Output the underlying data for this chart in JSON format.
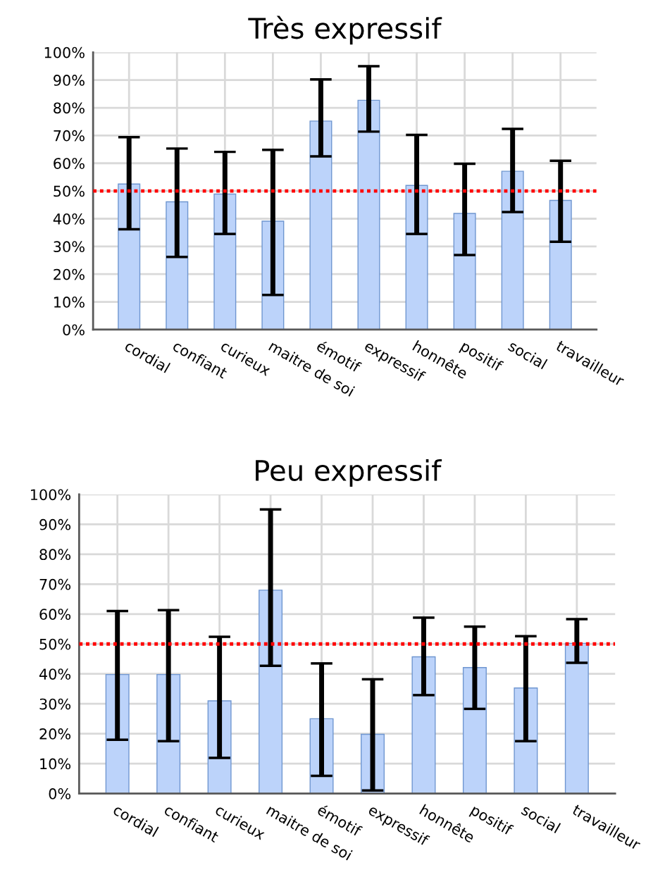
{
  "chart_data": [
    {
      "type": "bar",
      "title": "Très expressif",
      "categories": [
        "cordial",
        "confiant",
        "curieux",
        "maitre de soi",
        "émotif",
        "expressif",
        "honnête",
        "positif",
        "social",
        "travailleur"
      ],
      "values": [
        52.5,
        46.1,
        48.9,
        39.1,
        75.2,
        82.7,
        52.0,
        41.9,
        57.1,
        46.6
      ],
      "errors": [
        [
          36.2,
          69.4
        ],
        [
          26.2,
          65.3
        ],
        [
          34.5,
          64.1
        ],
        [
          12.5,
          64.8
        ],
        [
          62.5,
          90.2
        ],
        [
          71.4,
          95.0
        ],
        [
          34.5,
          70.2
        ],
        [
          26.9,
          59.8
        ],
        [
          42.4,
          72.4
        ],
        [
          31.7,
          60.9
        ]
      ],
      "color": "#bcd3fa",
      "ylim": [
        0,
        100
      ],
      "yticks": [
        {
          "value": 0,
          "label": "0%"
        },
        {
          "value": 10,
          "label": "10%"
        },
        {
          "value": 20,
          "label": "20%"
        },
        {
          "value": 30,
          "label": "30%"
        },
        {
          "value": 40,
          "label": "40%"
        },
        {
          "value": 50,
          "label": "50%"
        },
        {
          "value": 60,
          "label": "60%"
        },
        {
          "value": 70,
          "label": "70%"
        },
        {
          "value": 80,
          "label": "80%"
        },
        {
          "value": 90,
          "label": "90%"
        },
        {
          "value": 100,
          "label": "100%"
        }
      ],
      "ref_lines": [
        {
          "axis": "y",
          "value": 50,
          "label": null,
          "color": "#ff0000",
          "line_style": "dotted"
        }
      ],
      "grid": true
    },
    {
      "type": "bar",
      "title": "Peu expressif",
      "categories": [
        "cordial",
        "confiant",
        "curieux",
        "maitre de soi",
        "émotif",
        "expressif",
        "honnête",
        "positif",
        "social",
        "travailleur"
      ],
      "values": [
        39.8,
        39.8,
        31.0,
        68.0,
        25.0,
        19.8,
        45.7,
        42.1,
        35.3,
        50.2
      ],
      "errors": [
        [
          18.0,
          61.0
        ],
        [
          17.5,
          61.3
        ],
        [
          11.9,
          52.4
        ],
        [
          42.7,
          95.0
        ],
        [
          5.9,
          43.5
        ],
        [
          1.0,
          38.2
        ],
        [
          32.9,
          58.8
        ],
        [
          28.3,
          55.8
        ],
        [
          17.5,
          52.6
        ],
        [
          43.7,
          58.3
        ]
      ],
      "color": "#bcd3fa",
      "ylim": [
        0,
        100
      ],
      "yticks": [
        {
          "value": 0,
          "label": "0%"
        },
        {
          "value": 10,
          "label": "10%"
        },
        {
          "value": 20,
          "label": "20%"
        },
        {
          "value": 30,
          "label": "30%"
        },
        {
          "value": 40,
          "label": "40%"
        },
        {
          "value": 50,
          "label": "50%"
        },
        {
          "value": 60,
          "label": "60%"
        },
        {
          "value": 70,
          "label": "70%"
        },
        {
          "value": 80,
          "label": "80%"
        },
        {
          "value": 90,
          "label": "90%"
        },
        {
          "value": 100,
          "label": "100%"
        }
      ],
      "ref_lines": [
        {
          "axis": "y",
          "value": 50,
          "label": null,
          "color": "#ff0000",
          "line_style": "dotted"
        }
      ],
      "grid": true
    }
  ]
}
